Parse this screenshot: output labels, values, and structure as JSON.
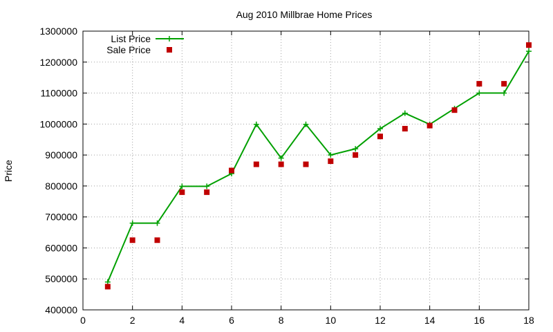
{
  "chart_data": {
    "type": "line",
    "title": "Aug 2010 Millbrae Home Prices",
    "xlabel": "",
    "ylabel": "Price",
    "xlim": [
      0,
      18
    ],
    "ylim": [
      400000,
      1300000
    ],
    "x_ticks": [
      0,
      2,
      4,
      6,
      8,
      10,
      12,
      14,
      16,
      18
    ],
    "y_ticks": [
      400000,
      500000,
      600000,
      700000,
      800000,
      900000,
      1000000,
      1100000,
      1200000,
      1300000
    ],
    "grid": true,
    "legend_position": "top-left",
    "series": [
      {
        "name": "List Price",
        "style": "line-with-plus-markers",
        "color": "#00a000",
        "x": [
          1,
          2,
          3,
          4,
          5,
          6,
          7,
          8,
          9,
          10,
          11,
          12,
          13,
          14,
          15,
          16,
          17,
          18
        ],
        "values": [
          490000,
          680000,
          680000,
          799000,
          799000,
          840000,
          999000,
          890000,
          999000,
          900000,
          920000,
          985000,
          1035000,
          999000,
          1050000,
          1100000,
          1100000,
          1235000
        ]
      },
      {
        "name": "Sale Price",
        "style": "square-markers",
        "color": "#c00000",
        "x": [
          1,
          2,
          3,
          4,
          5,
          6,
          7,
          8,
          9,
          10,
          11,
          12,
          13,
          14,
          15,
          16,
          17,
          18
        ],
        "values": [
          475000,
          625000,
          625000,
          780000,
          780000,
          850000,
          870000,
          870000,
          870000,
          880000,
          900000,
          960000,
          985000,
          995000,
          1045000,
          1130000,
          1130000,
          1255000
        ]
      }
    ]
  }
}
